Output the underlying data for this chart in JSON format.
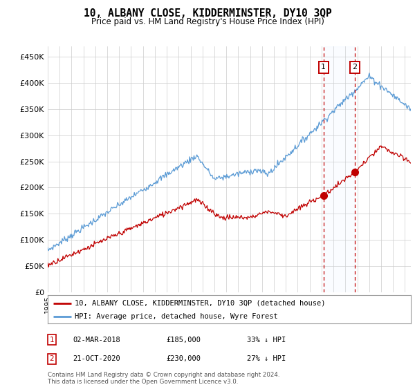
{
  "title": "10, ALBANY CLOSE, KIDDERMINSTER, DY10 3QP",
  "subtitle": "Price paid vs. HM Land Registry's House Price Index (HPI)",
  "footer": "Contains HM Land Registry data © Crown copyright and database right 2024.\nThis data is licensed under the Open Government Licence v3.0.",
  "legend_line1": "10, ALBANY CLOSE, KIDDERMINSTER, DY10 3QP (detached house)",
  "legend_line2": "HPI: Average price, detached house, Wyre Forest",
  "annotation1_date": "02-MAR-2018",
  "annotation1_price": "£185,000",
  "annotation1_hpi": "33% ↓ HPI",
  "annotation2_date": "21-OCT-2020",
  "annotation2_price": "£230,000",
  "annotation2_hpi": "27% ↓ HPI",
  "sale1_year": 2018.17,
  "sale1_price": 185000,
  "sale2_year": 2020.8,
  "sale2_price": 230000,
  "xlim_start": 1995,
  "xlim_end": 2025.5,
  "ylim": [
    0,
    470000
  ],
  "yticks": [
    0,
    50000,
    100000,
    150000,
    200000,
    250000,
    300000,
    350000,
    400000,
    450000
  ],
  "ytick_labels": [
    "£0",
    "£50K",
    "£100K",
    "£150K",
    "£200K",
    "£250K",
    "£300K",
    "£350K",
    "£400K",
    "£450K"
  ],
  "hpi_color": "#5b9bd5",
  "price_color": "#c00000",
  "background_color": "#ffffff",
  "grid_color": "#cccccc",
  "span_color": "#ddeeff"
}
